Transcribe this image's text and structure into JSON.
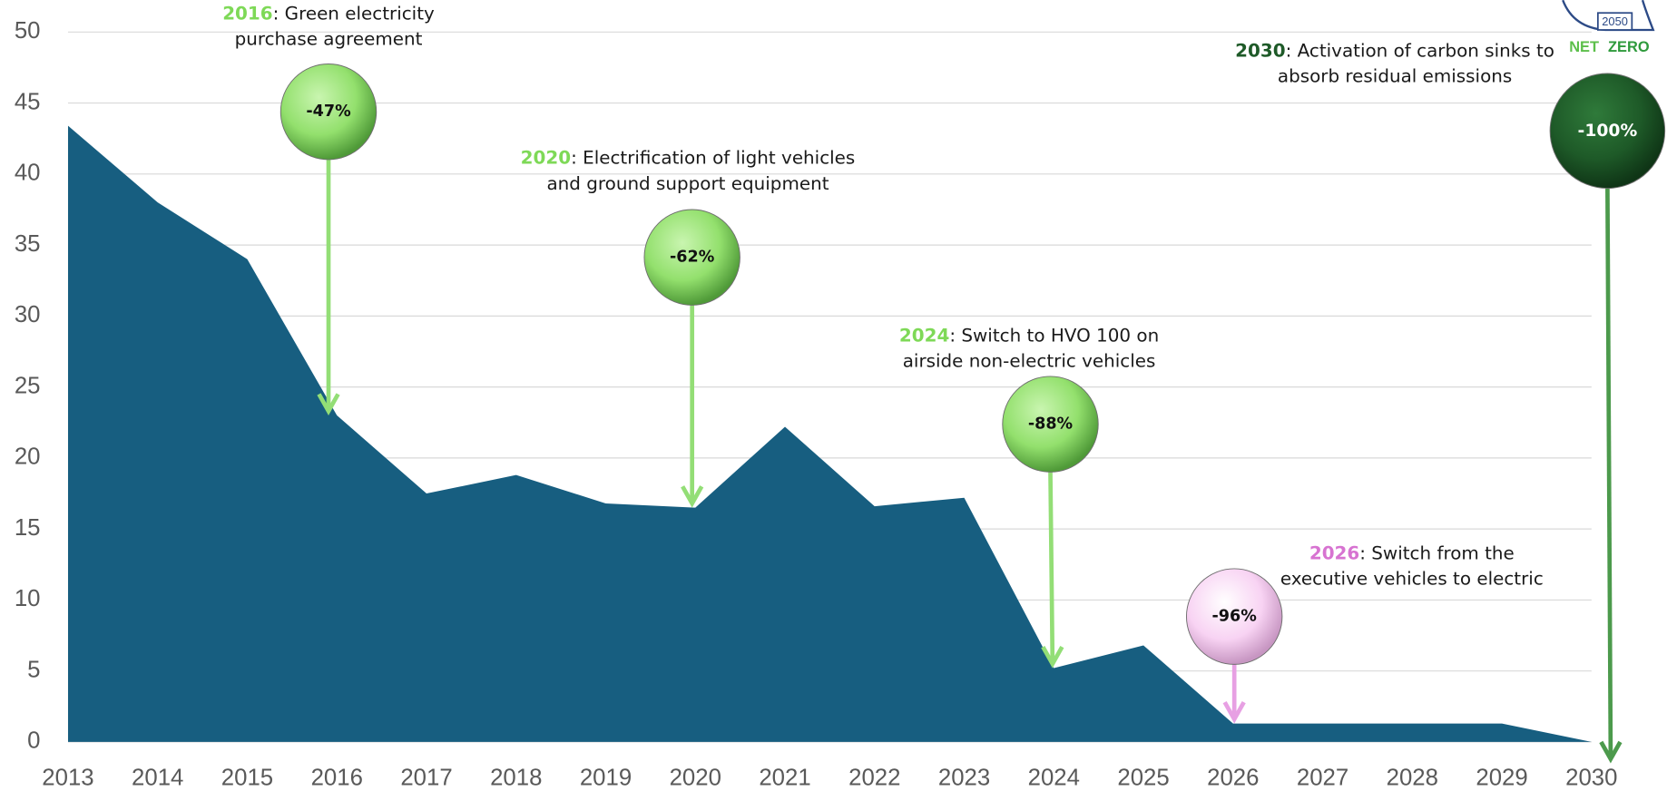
{
  "chart_data": {
    "type": "area",
    "x": [
      2013,
      2014,
      2015,
      2016,
      2017,
      2018,
      2019,
      2020,
      2021,
      2022,
      2023,
      2024,
      2025,
      2026,
      2027,
      2028,
      2029,
      2030
    ],
    "values": [
      43.4,
      38,
      34,
      23,
      17.5,
      18.8,
      16.8,
      16.5,
      22.2,
      16.6,
      17.2,
      5.2,
      6.8,
      1.3,
      1.3,
      1.3,
      1.3,
      0
    ],
    "color": "#175e80",
    "xlim": [
      2013,
      2030
    ],
    "xticks": [
      2013,
      2014,
      2015,
      2016,
      2017,
      2018,
      2019,
      2020,
      2021,
      2022,
      2023,
      2024,
      2025,
      2026,
      2027,
      2028,
      2029,
      2030
    ],
    "ylim": [
      0,
      50
    ],
    "yticks": [
      0,
      5,
      10,
      15,
      20,
      25,
      30,
      35,
      40,
      45,
      50
    ],
    "grid": true,
    "annotations": [
      {
        "year": "2016",
        "lines": [
          ": Green electricity",
          "purchase agreement"
        ],
        "badge": "-47%",
        "color": "#7ed957"
      },
      {
        "year": "2020",
        "lines": [
          ": Electrification of light vehicles",
          "and ground support equipment"
        ],
        "badge": "-62%",
        "color": "#7ed957"
      },
      {
        "year": "2024",
        "lines": [
          ": Switch to HVO 100 on",
          "airside non-electric vehicles"
        ],
        "badge": "-88%",
        "color": "#7ed957"
      },
      {
        "year": "2026",
        "lines": [
          ": Switch from the",
          "executive vehicles to electric"
        ],
        "badge": "-96%",
        "color": "#d773d1"
      },
      {
        "year": "2030",
        "lines": [
          ": Activation of carbon sinks to",
          "absorb residual emissions"
        ],
        "badge": "-100%",
        "color": "#1e5a28"
      }
    ],
    "logo": {
      "year": "2050",
      "word1": "NET",
      "word2": "ZERO"
    }
  }
}
